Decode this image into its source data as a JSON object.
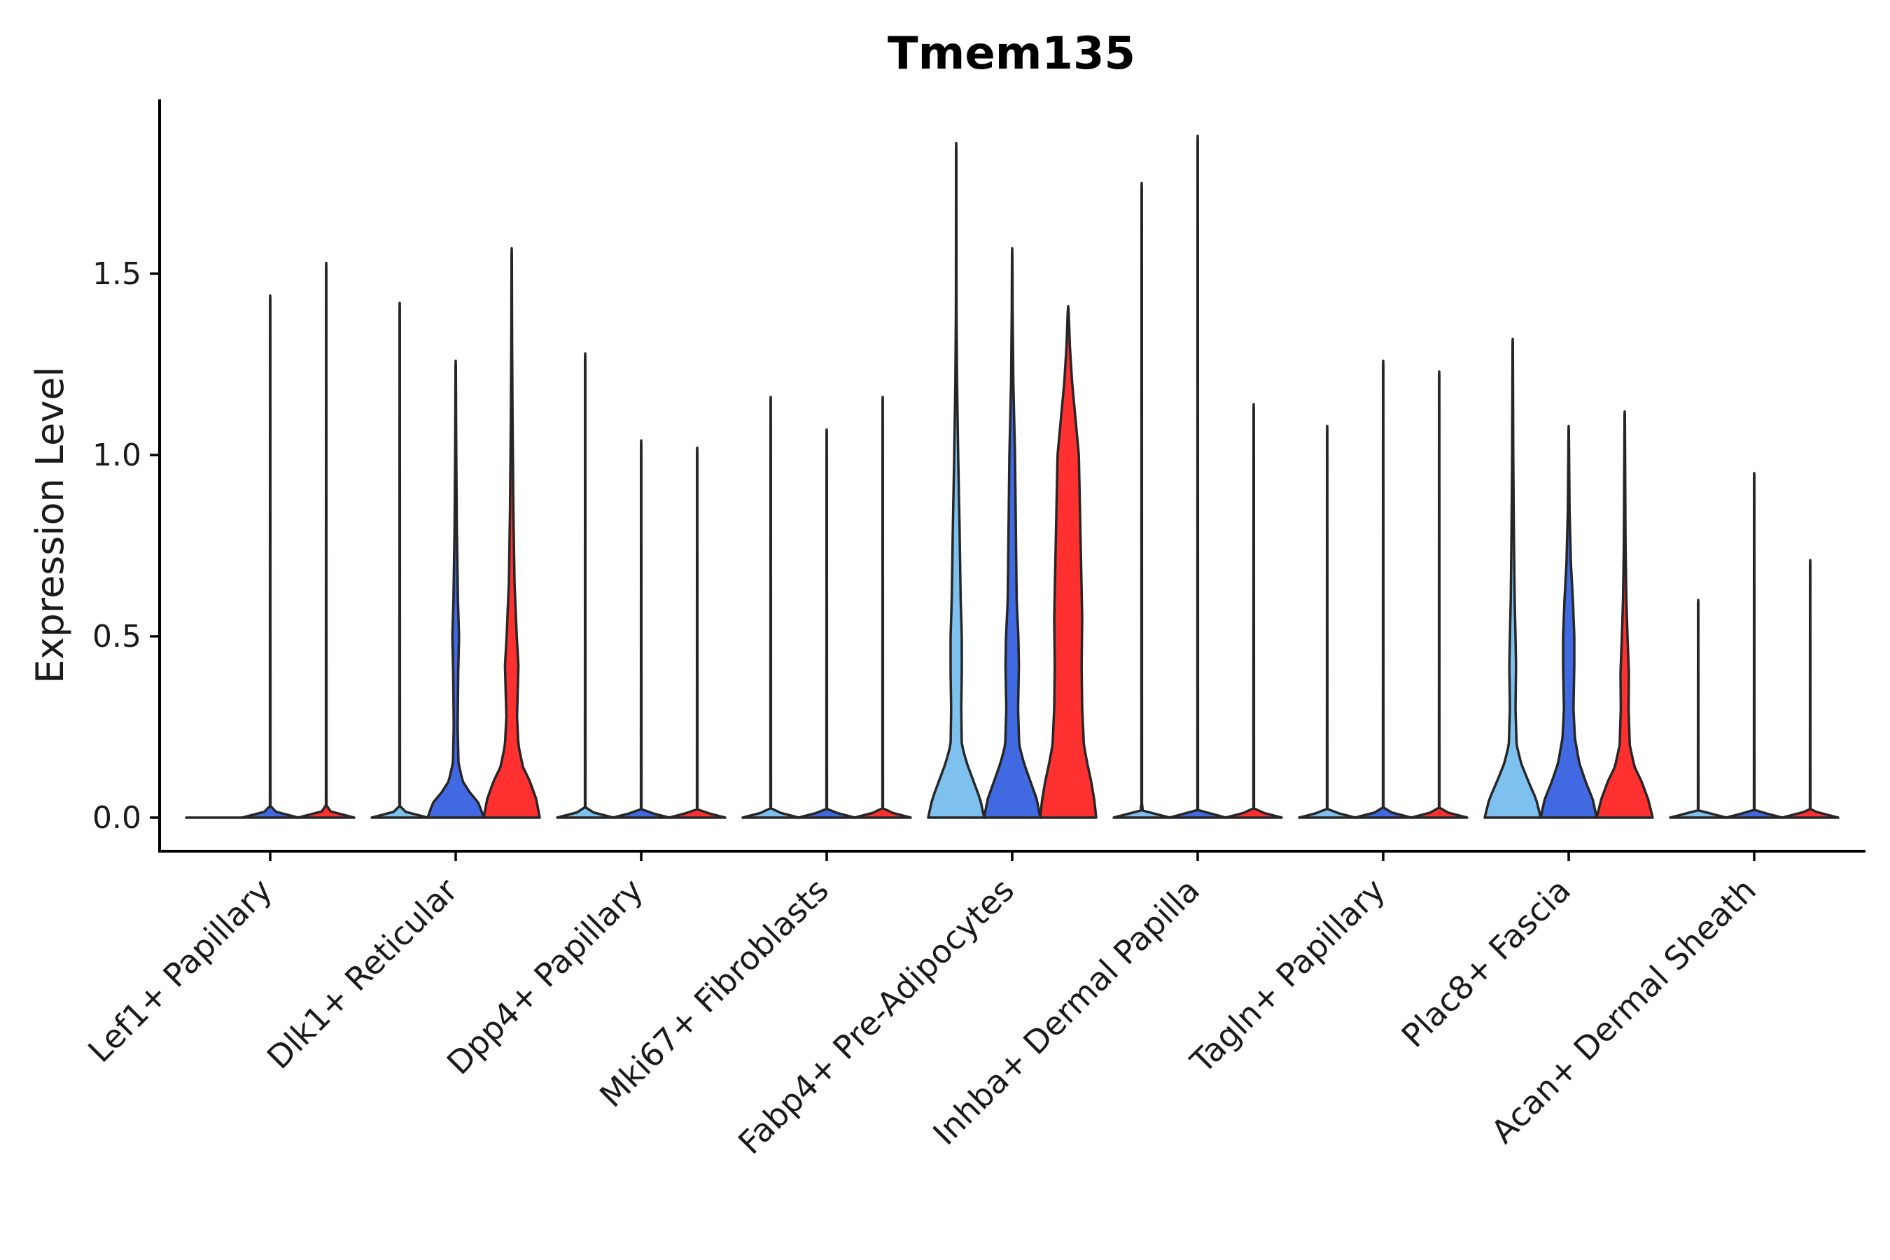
{
  "chart_data": {
    "type": "violin",
    "title": "Tmem135",
    "xlabel": "",
    "ylabel": "Expression Level",
    "ylim": [
      -0.09,
      2.0
    ],
    "yticks": [
      0.0,
      0.5,
      1.0,
      1.5
    ],
    "ytick_labels": [
      "0.0",
      "0.5",
      "1.0",
      "1.5"
    ],
    "grid": false,
    "legend": "none",
    "series_colors": {
      "light": "#7EC0EE",
      "blue": "#4169E1",
      "red": "#FF3030"
    },
    "categories": [
      "Lef1+ Papillary",
      "Dlk1+ Reticular",
      "Dpp4+ Papillary",
      "Mki67+ Fibroblasts",
      "Fabp4+ Pre-Adipocytes",
      "Inhba+ Dermal Papilla",
      "Tagln+ Papillary",
      "Plac8+ Fascia",
      "Acan+ Dermal Sheath"
    ],
    "groups": [
      {
        "category": "Lef1+ Papillary",
        "violins": [
          {
            "series": "light",
            "max": 0.0,
            "density": [
              [
                0,
                1
              ]
            ]
          },
          {
            "series": "blue",
            "max": 1.44,
            "density": [
              [
                0,
                1
              ],
              [
                0.02,
                0.01
              ],
              [
                1.44,
                0.005
              ]
            ]
          },
          {
            "series": "red",
            "max": 1.53,
            "density": [
              [
                0,
                1
              ],
              [
                0.02,
                0.01
              ],
              [
                1.53,
                0.005
              ]
            ]
          }
        ]
      },
      {
        "category": "Dlk1+ Reticular",
        "violins": [
          {
            "series": "light",
            "max": 1.42,
            "density": [
              [
                0,
                1
              ],
              [
                0.02,
                0.01
              ],
              [
                1.42,
                0.005
              ]
            ]
          },
          {
            "series": "blue",
            "max": 1.26,
            "density": [
              [
                0,
                1
              ],
              [
                0.04,
                0.82
              ],
              [
                0.07,
                0.5
              ],
              [
                0.1,
                0.25
              ],
              [
                0.15,
                0.1
              ],
              [
                0.25,
                0.07
              ],
              [
                0.4,
                0.09
              ],
              [
                0.5,
                0.12
              ],
              [
                0.6,
                0.08
              ],
              [
                0.8,
                0.04
              ],
              [
                1.0,
                0.02
              ],
              [
                1.26,
                0.005
              ]
            ]
          },
          {
            "series": "red",
            "max": 1.57,
            "density": [
              [
                0,
                1
              ],
              [
                0.05,
                0.88
              ],
              [
                0.1,
                0.65
              ],
              [
                0.14,
                0.4
              ],
              [
                0.2,
                0.24
              ],
              [
                0.28,
                0.19
              ],
              [
                0.36,
                0.22
              ],
              [
                0.42,
                0.24
              ],
              [
                0.5,
                0.18
              ],
              [
                0.65,
                0.1
              ],
              [
                0.85,
                0.06
              ],
              [
                1.1,
                0.03
              ],
              [
                1.3,
                0.015
              ],
              [
                1.57,
                0.005
              ]
            ]
          }
        ]
      },
      {
        "category": "Dpp4+ Papillary",
        "violins": [
          {
            "series": "light",
            "max": 1.28,
            "density": [
              [
                0,
                1
              ],
              [
                0.02,
                0.01
              ],
              [
                1.28,
                0.005
              ]
            ]
          },
          {
            "series": "blue",
            "max": 1.04,
            "density": [
              [
                0,
                1
              ],
              [
                0.02,
                0.01
              ],
              [
                1.04,
                0.005
              ]
            ]
          },
          {
            "series": "red",
            "max": 1.02,
            "density": [
              [
                0,
                1
              ],
              [
                0.02,
                0.01
              ],
              [
                1.02,
                0.005
              ]
            ]
          }
        ]
      },
      {
        "category": "Mki67+ Fibroblasts",
        "violins": [
          {
            "series": "light",
            "max": 1.16,
            "density": [
              [
                0,
                1
              ],
              [
                0.02,
                0.01
              ],
              [
                1.16,
                0.005
              ]
            ]
          },
          {
            "series": "blue",
            "max": 1.07,
            "density": [
              [
                0,
                1
              ],
              [
                0.02,
                0.01
              ],
              [
                1.07,
                0.005
              ]
            ]
          },
          {
            "series": "red",
            "max": 1.16,
            "density": [
              [
                0,
                1
              ],
              [
                0.02,
                0.01
              ],
              [
                1.16,
                0.005
              ]
            ]
          }
        ]
      },
      {
        "category": "Fabp4+ Pre-Adipocytes",
        "violins": [
          {
            "series": "light",
            "max": 1.86,
            "density": [
              [
                0,
                1
              ],
              [
                0.05,
                0.86
              ],
              [
                0.1,
                0.62
              ],
              [
                0.15,
                0.38
              ],
              [
                0.2,
                0.2
              ],
              [
                0.3,
                0.18
              ],
              [
                0.4,
                0.2
              ],
              [
                0.5,
                0.2
              ],
              [
                0.6,
                0.16
              ],
              [
                0.8,
                0.12
              ],
              [
                1.0,
                0.07
              ],
              [
                1.2,
                0.03
              ],
              [
                1.4,
                0.01
              ],
              [
                1.86,
                0.005
              ]
            ]
          },
          {
            "series": "blue",
            "max": 1.57,
            "density": [
              [
                0,
                1
              ],
              [
                0.05,
                0.88
              ],
              [
                0.1,
                0.65
              ],
              [
                0.15,
                0.42
              ],
              [
                0.2,
                0.25
              ],
              [
                0.3,
                0.21
              ],
              [
                0.42,
                0.24
              ],
              [
                0.5,
                0.22
              ],
              [
                0.6,
                0.16
              ],
              [
                0.8,
                0.13
              ],
              [
                1.0,
                0.1
              ],
              [
                1.2,
                0.04
              ],
              [
                1.4,
                0.015
              ],
              [
                1.57,
                0.005
              ]
            ]
          },
          {
            "series": "red",
            "max": 1.41,
            "density": [
              [
                0,
                1
              ],
              [
                0.05,
                0.93
              ],
              [
                0.1,
                0.82
              ],
              [
                0.15,
                0.68
              ],
              [
                0.2,
                0.56
              ],
              [
                0.3,
                0.5
              ],
              [
                0.42,
                0.48
              ],
              [
                0.55,
                0.5
              ],
              [
                0.7,
                0.46
              ],
              [
                0.85,
                0.42
              ],
              [
                1.0,
                0.38
              ],
              [
                1.1,
                0.26
              ],
              [
                1.2,
                0.14
              ],
              [
                1.3,
                0.06
              ],
              [
                1.41,
                0.01
              ]
            ]
          }
        ]
      },
      {
        "category": "Inhba+ Dermal Papilla",
        "violins": [
          {
            "series": "light",
            "max": 1.75,
            "density": [
              [
                0,
                1
              ],
              [
                0.02,
                0.01
              ],
              [
                1.75,
                0.005
              ]
            ]
          },
          {
            "series": "blue",
            "max": 1.88,
            "density": [
              [
                0,
                1
              ],
              [
                0.02,
                0.01
              ],
              [
                1.88,
                0.005
              ]
            ]
          },
          {
            "series": "red",
            "max": 1.14,
            "density": [
              [
                0,
                1
              ],
              [
                0.02,
                0.01
              ],
              [
                1.14,
                0.005
              ]
            ]
          }
        ]
      },
      {
        "category": "Tagln+ Papillary",
        "violins": [
          {
            "series": "light",
            "max": 1.08,
            "density": [
              [
                0,
                1
              ],
              [
                0.02,
                0.01
              ],
              [
                1.08,
                0.005
              ]
            ]
          },
          {
            "series": "blue",
            "max": 1.26,
            "density": [
              [
                0,
                1
              ],
              [
                0.02,
                0.01
              ],
              [
                1.26,
                0.005
              ]
            ]
          },
          {
            "series": "red",
            "max": 1.23,
            "density": [
              [
                0,
                1
              ],
              [
                0.02,
                0.01
              ],
              [
                1.23,
                0.005
              ]
            ]
          }
        ]
      },
      {
        "category": "Plac8+ Fascia",
        "violins": [
          {
            "series": "light",
            "max": 1.32,
            "density": [
              [
                0,
                1
              ],
              [
                0.05,
                0.84
              ],
              [
                0.1,
                0.56
              ],
              [
                0.15,
                0.3
              ],
              [
                0.2,
                0.14
              ],
              [
                0.3,
                0.1
              ],
              [
                0.42,
                0.12
              ],
              [
                0.5,
                0.1
              ],
              [
                0.6,
                0.07
              ],
              [
                0.8,
                0.04
              ],
              [
                1.0,
                0.02
              ],
              [
                1.32,
                0.005
              ]
            ]
          },
          {
            "series": "blue",
            "max": 1.08,
            "density": [
              [
                0,
                1
              ],
              [
                0.05,
                0.86
              ],
              [
                0.1,
                0.6
              ],
              [
                0.15,
                0.38
              ],
              [
                0.22,
                0.22
              ],
              [
                0.3,
                0.17
              ],
              [
                0.42,
                0.2
              ],
              [
                0.5,
                0.2
              ],
              [
                0.6,
                0.15
              ],
              [
                0.7,
                0.08
              ],
              [
                0.85,
                0.03
              ],
              [
                1.08,
                0.005
              ]
            ]
          },
          {
            "series": "red",
            "max": 1.12,
            "density": [
              [
                0,
                1
              ],
              [
                0.05,
                0.84
              ],
              [
                0.1,
                0.6
              ],
              [
                0.14,
                0.35
              ],
              [
                0.2,
                0.18
              ],
              [
                0.3,
                0.14
              ],
              [
                0.4,
                0.15
              ],
              [
                0.5,
                0.1
              ],
              [
                0.6,
                0.06
              ],
              [
                0.75,
                0.03
              ],
              [
                1.12,
                0.005
              ]
            ]
          }
        ]
      },
      {
        "category": "Acan+ Dermal Sheath",
        "violins": [
          {
            "series": "light",
            "max": 0.6,
            "density": [
              [
                0,
                1
              ],
              [
                0.02,
                0.01
              ],
              [
                0.6,
                0.005
              ]
            ]
          },
          {
            "series": "blue",
            "max": 0.95,
            "density": [
              [
                0,
                1
              ],
              [
                0.02,
                0.01
              ],
              [
                0.95,
                0.005
              ]
            ]
          },
          {
            "series": "red",
            "max": 0.71,
            "density": [
              [
                0,
                1
              ],
              [
                0.02,
                0.01
              ],
              [
                0.71,
                0.005
              ]
            ]
          }
        ]
      }
    ]
  }
}
